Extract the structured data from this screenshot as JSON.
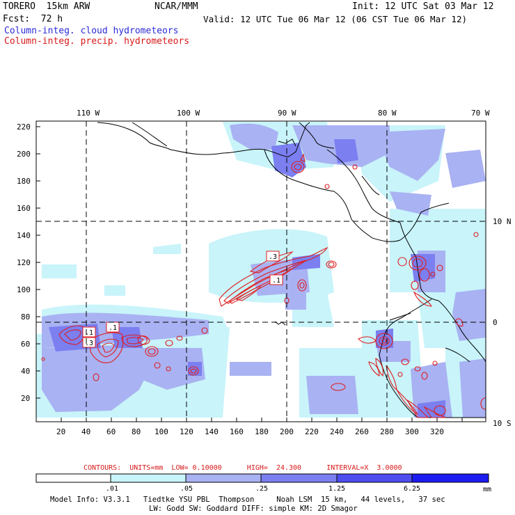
{
  "header": {
    "model": "TORERO  15km ARW",
    "org": "NCAR/MMM",
    "init": "Init: 12 UTC Sat 03 Mar 12",
    "fcst": "Fcst:  72 h",
    "valid": "Valid: 12 UTC Tue 06 Mar 12 (06 CST Tue 06 Mar 12)",
    "line_blue": "Column-integ. cloud hydrometeors",
    "line_red": "Column-integ. precip. hydrometeors"
  },
  "map": {
    "top_lon_labels": [
      "110 W",
      "100 W",
      "90 W",
      "80 W",
      "70 W"
    ],
    "right_lat_labels": [
      "10 N",
      "0",
      "10 S"
    ],
    "y_ticks": [
      "220",
      "200",
      "180",
      "160",
      "140",
      "120",
      "100",
      "80",
      "60",
      "40",
      "20"
    ],
    "x_ticks": [
      "20",
      "40",
      "60",
      "80",
      "100",
      "120",
      "140",
      "160",
      "180",
      "200",
      "220",
      "240",
      "260",
      "280",
      "300",
      "320"
    ],
    "contour_labels": [
      ".3",
      ".1",
      ".1",
      ".1",
      ".3"
    ],
    "colors": {
      "c1": "#c8f4fa",
      "c2": "#a9b2f2",
      "c3": "#7b7ff0",
      "c4": "#4d4df0",
      "c5": "#1c1cf0",
      "precip": "#e01c1c",
      "coast": "#000000"
    }
  },
  "contours_info": {
    "text": "CONTOURS:  UNITS=mm  LOW= 0.10000      HIGH=  24.300      INTERVAL=X  3.0000"
  },
  "colorbar": {
    "labels": [
      ".01",
      ".05",
      ".25",
      "1.25",
      "6.25"
    ],
    "unit": "mm",
    "colors": [
      "#ffffff",
      "#c8f4fa",
      "#a9b2f2",
      "#7b7ff0",
      "#4d4df0",
      "#1c1cf0"
    ]
  },
  "footer": {
    "line1": "Model Info: V3.3.1   Tiedtke YSU PBL  Thompson     Noah LSM  15 km,   44 levels,   37 sec",
    "line2": "LW: Godd SW: Goddard DIFF: simple KM: 2D Smagor"
  }
}
